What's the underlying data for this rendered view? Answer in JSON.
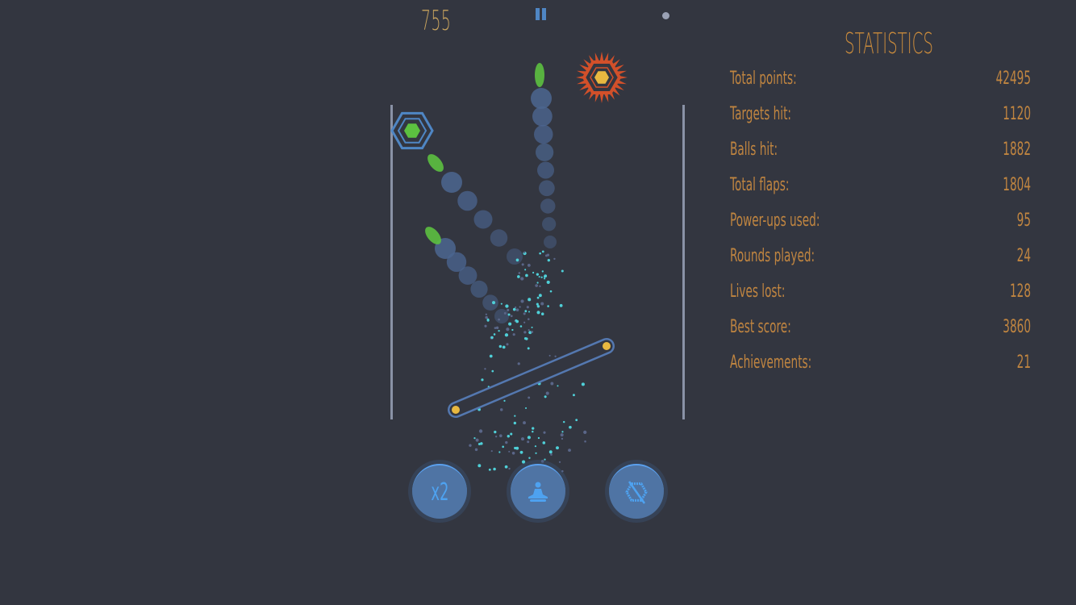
{
  "hud": {
    "score": "755",
    "pause_icon": "pause-icon",
    "indicator_icon": "dot-icon"
  },
  "statistics": {
    "title": "STATISTICS",
    "rows": [
      {
        "label": "Total points:",
        "value": "42495"
      },
      {
        "label": "Targets hit:",
        "value": "1120"
      },
      {
        "label": "Balls hit:",
        "value": "1882"
      },
      {
        "label": "Total flaps:",
        "value": "1804"
      },
      {
        "label": "Power-ups used:",
        "value": "95"
      },
      {
        "label": "Rounds played:",
        "value": "24"
      },
      {
        "label": "Lives lost:",
        "value": "128"
      },
      {
        "label": "Best score:",
        "value": "3860"
      },
      {
        "label": "Achievements:",
        "value": "21"
      }
    ]
  },
  "powerups": [
    {
      "name": "double-points",
      "label": "x2",
      "icon": "x2-icon"
    },
    {
      "name": "zen",
      "icon": "meditation-icon"
    },
    {
      "name": "no-spikes",
      "icon": "no-spiky-target-icon"
    }
  ],
  "colors": {
    "background": "#333640",
    "text": "#c88a3c",
    "accent": "#4ea2f0",
    "ball": "#5cc040",
    "target_spiky": "#d2502a",
    "target_yellow": "#e8b840",
    "particles": "#4fd0d8"
  }
}
